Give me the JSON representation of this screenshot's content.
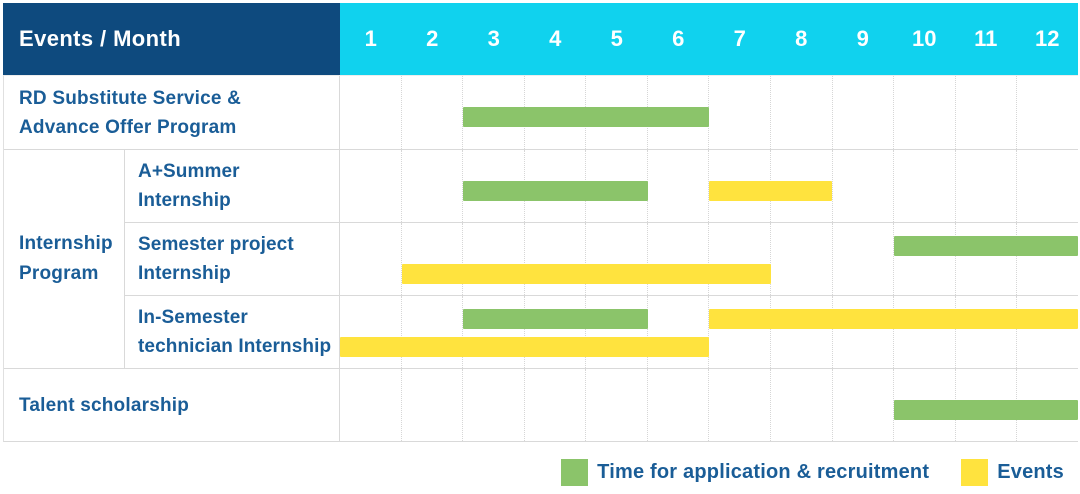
{
  "months": [
    "1",
    "2",
    "3",
    "4",
    "5",
    "6",
    "7",
    "8",
    "9",
    "10",
    "11",
    "12"
  ],
  "colors": {
    "header_bg": "#0E4A7E",
    "months_bg": "#10D2EE",
    "recruitment": "#8BC46A",
    "events": "#FFE33E",
    "label_text": "#1A5D97"
  },
  "chart_data": {
    "type": "bar",
    "variant": "gantt-schedule",
    "title": "Events / Month",
    "x": {
      "label": "Month",
      "ticks": [
        1,
        2,
        3,
        4,
        5,
        6,
        7,
        8,
        9,
        10,
        11,
        12
      ],
      "range": [
        1,
        13
      ]
    },
    "grid": true,
    "legend_position": "bottom-right",
    "group_label_lines": [
      "Internship",
      "Program"
    ],
    "rows": [
      {
        "group": "",
        "label_lines": [
          "RD Substitute Service &",
          "Advance Offer Program"
        ],
        "lines": 1,
        "bars": [
          {
            "series": "recruitment",
            "start_month": 3,
            "end_month": 6,
            "line": 1
          }
        ]
      },
      {
        "group": "Internship Program",
        "label_lines": [
          "A+Summer",
          "Internship"
        ],
        "lines": 1,
        "bars": [
          {
            "series": "recruitment",
            "start_month": 3,
            "end_month": 5,
            "line": 1
          },
          {
            "series": "events",
            "start_month": 7,
            "end_month": 8,
            "line": 1
          }
        ]
      },
      {
        "group": "Internship Program",
        "label_lines": [
          "Semester project",
          "Internship"
        ],
        "lines": 2,
        "bars": [
          {
            "series": "recruitment",
            "start_month": 10,
            "end_month": 12,
            "line": 1
          },
          {
            "series": "events",
            "start_month": 2,
            "end_month": 7,
            "line": 2
          }
        ]
      },
      {
        "group": "Internship Program",
        "label_lines": [
          "In-Semester",
          "technician Internship"
        ],
        "lines": 2,
        "bars": [
          {
            "series": "recruitment",
            "start_month": 3,
            "end_month": 5,
            "line": 1
          },
          {
            "series": "events",
            "start_month": 7,
            "end_month": 12,
            "line": 1
          },
          {
            "series": "events",
            "start_month": 1,
            "end_month": 6,
            "line": 2
          }
        ]
      },
      {
        "group": "",
        "label_lines": [
          "Talent scholarship"
        ],
        "lines": 1,
        "bars": [
          {
            "series": "recruitment",
            "start_month": 10,
            "end_month": 12,
            "line": 1
          }
        ]
      }
    ],
    "legend": [
      {
        "label": "Time for application & recruitment",
        "series": "recruitment"
      },
      {
        "label": "Events",
        "series": "events"
      }
    ]
  }
}
